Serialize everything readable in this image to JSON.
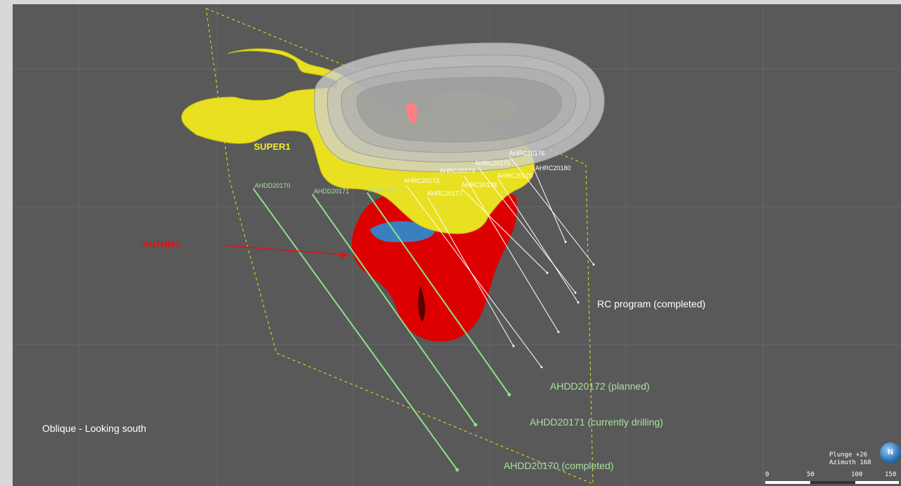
{
  "view": {
    "title": "Oblique - Looking south",
    "orientation": {
      "plunge": "Plunge +26",
      "azimuth": "Azimuth 168",
      "compass_letter": "N"
    },
    "scale": {
      "ticks": [
        "0",
        "50",
        "100",
        "150"
      ]
    }
  },
  "bodies": {
    "super": "SUPER1",
    "anth": "ANTHM1"
  },
  "notes": {
    "rc": "RC program (completed)",
    "dd172": "AHDD20172 (planned)",
    "dd171": "AHDD20171 (currently drilling)",
    "dd170": "AHDD20170 (completed)"
  },
  "holes": {
    "dd": [
      "AHDD20170",
      "AHDD20171",
      "AHDD20172"
    ],
    "rc": [
      "AHRC20176",
      "AHRC20175",
      "AHRC20180",
      "AHRC20174",
      "AHRC20179",
      "AHRC20173",
      "AHRC20178",
      "AHRC20177"
    ]
  },
  "colors": {
    "background": "#595959",
    "ore_body": "#e8e020",
    "anth_body": "#dd0000",
    "pit": "#c8c8c8",
    "dd_trace": "#8ee08a",
    "rc_trace": "#ffffff",
    "section": "#e8e020"
  }
}
